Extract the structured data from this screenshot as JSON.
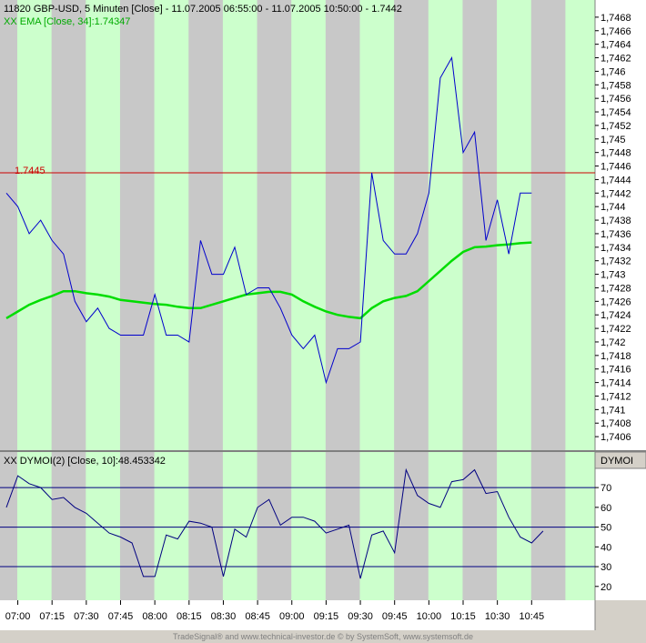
{
  "chart_data": [
    {
      "type": "line",
      "title": "11820  GBP-USD, 5 Minuten [Close] - 11.07.2005 06:55:00 - 11.07.2005 10:50:00 - 1.7442",
      "indicator_label": "XX EMA [Close, 34]:1.74347",
      "reference_line": {
        "value": 1.7445,
        "label": "1.7445",
        "color": "#cc0000"
      },
      "ylim": [
        1.7404,
        1.747
      ],
      "yticks": [
        "1,7468",
        "1,7466",
        "1,7464",
        "1,7462",
        "1,746",
        "1,7458",
        "1,7456",
        "1,7454",
        "1,7452",
        "1,745",
        "1,7448",
        "1,7446",
        "1,7444",
        "1,7442",
        "1,744",
        "1,7438",
        "1,7436",
        "1,7434",
        "1,7432",
        "1,743",
        "1,7428",
        "1,7426",
        "1,7424",
        "1,7422",
        "1,742",
        "1,7418",
        "1,7416",
        "1,7414",
        "1,7412",
        "1,741",
        "1,7408",
        "1,7406"
      ],
      "grid": false,
      "series": [
        {
          "color": "#0000cc",
          "values": [
            1.7442,
            1.744,
            1.7436,
            1.7438,
            1.7435,
            1.7433,
            1.7426,
            1.7423,
            1.7425,
            1.7422,
            1.7421,
            1.7421,
            1.7421,
            1.7427,
            1.7421,
            1.7421,
            1.742,
            1.7435,
            1.743,
            1.743,
            1.7434,
            1.7427,
            1.7428,
            1.7428,
            1.7425,
            1.7421,
            1.7419,
            1.7421,
            1.7414,
            1.7419,
            1.7419,
            1.742,
            1.7445,
            1.7435,
            1.7433,
            1.7433,
            1.7436,
            1.7442,
            1.7459,
            1.7462,
            1.7448,
            1.7451,
            1.7435,
            1.7441,
            1.7433,
            1.7442,
            1.7442
          ]
        },
        {
          "color": "#00dd00",
          "values": [
            1.74235,
            1.74245,
            1.74255,
            1.74262,
            1.74268,
            1.74275,
            1.74275,
            1.74272,
            1.7427,
            1.74267,
            1.74262,
            1.7426,
            1.74258,
            1.74256,
            1.74255,
            1.74252,
            1.7425,
            1.7425,
            1.74255,
            1.7426,
            1.74265,
            1.7427,
            1.74272,
            1.74274,
            1.74274,
            1.7427,
            1.7426,
            1.74252,
            1.74245,
            1.7424,
            1.74237,
            1.74235,
            1.7425,
            1.7426,
            1.74265,
            1.74268,
            1.74275,
            1.7429,
            1.74305,
            1.7432,
            1.74333,
            1.7434,
            1.74341,
            1.74343,
            1.74344,
            1.74346,
            1.74347
          ]
        }
      ]
    },
    {
      "type": "line",
      "title": "XX DYMOI(2) [Close, 10]:48.453342",
      "panel_label": "DYMOI",
      "ylim": [
        13,
        88
      ],
      "yticks": [
        "70",
        "60",
        "50",
        "40",
        "30",
        "20"
      ],
      "reference_lines": [
        70,
        50,
        30
      ],
      "grid": false,
      "series": [
        {
          "color": "#000080",
          "values": [
            60,
            76,
            72,
            70,
            64,
            65,
            60,
            57,
            52,
            47,
            45,
            42,
            25,
            25,
            46,
            44,
            53,
            52,
            50,
            25,
            49,
            45,
            60,
            64,
            51,
            55,
            55,
            53,
            47,
            49,
            51,
            24,
            46,
            48,
            37,
            79,
            66,
            62,
            60,
            73,
            74,
            79,
            67,
            68,
            55,
            45,
            42,
            48
          ]
        }
      ],
      "x_tick_labels": [
        "07:00",
        "07:15",
        "07:30",
        "07:45",
        "08:00",
        "08:15",
        "08:30",
        "08:45",
        "09:00",
        "09:15",
        "09:30",
        "09:45",
        "10:00",
        "10:15",
        "10:30",
        "10:45"
      ]
    }
  ],
  "footer": "TradeSignal® and www.technical-investor.de © by SystemSoft, www.systemsoft.de"
}
